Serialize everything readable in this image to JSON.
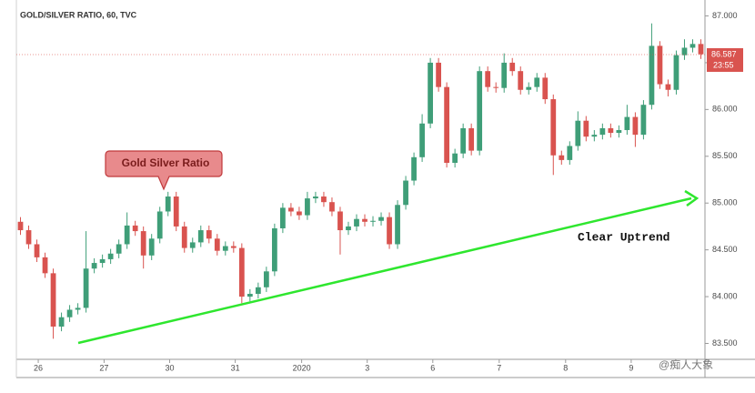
{
  "chart_data": {
    "type": "candlestick",
    "title": "GOLD/SILVER RATIO, 60, TVC",
    "annotation": "Gold Silver Ratio",
    "trend_label": "Clear Uptrend",
    "last_price": 86.587,
    "countdown": "23:55",
    "watermark": "@痴人大象",
    "up_color": "#3f9e78",
    "down_color": "#d9534f",
    "trend_color": "#2ee62e",
    "grid": false,
    "xlim": [
      -0.5,
      83.5
    ],
    "xticks": [
      {
        "value": 2.17,
        "label": "26"
      },
      {
        "value": 10.2,
        "label": "27"
      },
      {
        "value": 18.2,
        "label": "30"
      },
      {
        "value": 26.2,
        "label": "31"
      },
      {
        "value": 34.3,
        "label": "2020"
      },
      {
        "value": 42.3,
        "label": "3"
      },
      {
        "value": 50.3,
        "label": "6"
      },
      {
        "value": 58.4,
        "label": "7"
      },
      {
        "value": 66.5,
        "label": "8"
      },
      {
        "value": 74.5,
        "label": "9"
      }
    ],
    "ylim": [
      83.33,
      87.17
    ],
    "yticks": [
      {
        "value": 83.5,
        "label": "83.500"
      },
      {
        "value": 84,
        "label": "84.000"
      },
      {
        "value": 84.5,
        "label": "84.500"
      },
      {
        "value": 85,
        "label": "85.000"
      },
      {
        "value": 85.5,
        "label": "85.500"
      },
      {
        "value": 86,
        "label": "86.000"
      },
      {
        "value": 86.5,
        "label": "86.500"
      },
      {
        "value": 87,
        "label": "87.000"
      }
    ],
    "open": [
      84.8,
      84.71,
      84.56,
      84.42,
      84.25,
      83.68,
      83.78,
      83.86,
      83.88,
      84.3,
      84.36,
      84.4,
      84.46,
      84.56,
      84.76,
      84.7,
      84.44,
      84.62,
      84.91,
      85.07,
      84.75,
      84.52,
      84.58,
      84.71,
      84.62,
      84.49,
      84.54,
      84.52,
      84.0,
      84.03,
      84.1,
      84.27,
      84.73,
      84.95,
      84.91,
      84.87,
      85.05,
      85.07,
      85.01,
      84.91,
      84.71,
      84.75,
      84.83,
      84.8,
      84.81,
      84.85,
      84.56,
      84.98,
      85.24,
      85.49,
      85.85,
      86.5,
      86.24,
      85.43,
      85.53,
      85.8,
      85.56,
      86.41,
      86.24,
      86.23,
      86.5,
      86.41,
      86.21,
      86.24,
      86.34,
      86.11,
      85.51,
      85.46,
      85.61,
      85.88,
      85.71,
      85.73,
      85.8,
      85.75,
      85.78,
      85.92,
      85.73,
      86.05,
      86.68,
      86.27,
      86.21,
      86.58,
      86.66,
      86.7
    ],
    "high": [
      84.85,
      84.76,
      84.61,
      84.47,
      84.3,
      83.83,
      83.91,
      83.93,
      84.7,
      84.41,
      84.45,
      84.51,
      84.61,
      84.9,
      84.81,
      84.75,
      84.67,
      84.96,
      85.12,
      85.12,
      84.8,
      84.63,
      84.76,
      84.76,
      84.67,
      84.59,
      84.59,
      84.57,
      84.08,
      84.15,
      84.32,
      84.78,
      85.0,
      85.0,
      84.96,
      85.12,
      85.12,
      85.12,
      85.06,
      84.96,
      84.8,
      84.88,
      84.88,
      84.86,
      84.9,
      84.9,
      85.03,
      85.29,
      85.54,
      85.95,
      86.55,
      86.55,
      86.29,
      85.58,
      85.85,
      85.85,
      86.46,
      86.46,
      86.29,
      86.6,
      86.55,
      86.46,
      86.29,
      86.39,
      86.39,
      86.16,
      85.56,
      85.66,
      85.98,
      85.93,
      85.78,
      85.85,
      85.85,
      85.83,
      86.05,
      85.97,
      86.1,
      86.92,
      86.73,
      86.32,
      86.63,
      86.75,
      86.75,
      86.75
    ],
    "low": [
      84.66,
      84.51,
      84.37,
      84.2,
      83.55,
      83.63,
      83.73,
      83.81,
      83.83,
      84.25,
      84.31,
      84.35,
      84.41,
      84.51,
      84.65,
      84.3,
      84.39,
      84.57,
      84.86,
      84.7,
      84.47,
      84.47,
      84.53,
      84.57,
      84.44,
      84.44,
      84.47,
      83.93,
      83.95,
      83.98,
      84.05,
      84.22,
      84.68,
      84.86,
      84.82,
      84.82,
      85.0,
      84.96,
      84.86,
      84.45,
      84.66,
      84.7,
      84.75,
      84.75,
      84.76,
      84.51,
      84.51,
      84.93,
      85.19,
      85.44,
      85.8,
      86.19,
      85.38,
      85.38,
      85.48,
      85.51,
      85.51,
      86.19,
      86.18,
      86.18,
      86.36,
      86.16,
      86.16,
      86.19,
      86.06,
      85.3,
      85.41,
      85.41,
      85.56,
      85.66,
      85.66,
      85.68,
      85.7,
      85.7,
      85.73,
      85.6,
      85.68,
      86.0,
      86.22,
      86.14,
      86.16,
      86.53,
      86.61,
      86.54
    ],
    "close": [
      84.71,
      84.56,
      84.42,
      84.25,
      83.68,
      83.78,
      83.86,
      83.88,
      84.3,
      84.36,
      84.4,
      84.46,
      84.56,
      84.76,
      84.7,
      84.44,
      84.62,
      84.91,
      85.07,
      84.75,
      84.52,
      84.58,
      84.71,
      84.62,
      84.49,
      84.54,
      84.52,
      84.0,
      84.03,
      84.1,
      84.27,
      84.73,
      84.95,
      84.91,
      84.87,
      85.05,
      85.07,
      85.01,
      84.91,
      84.71,
      84.75,
      84.83,
      84.8,
      84.81,
      84.85,
      84.56,
      84.98,
      85.24,
      85.49,
      85.85,
      86.5,
      86.24,
      85.43,
      85.53,
      85.8,
      85.56,
      86.41,
      86.24,
      86.23,
      86.5,
      86.41,
      86.21,
      86.24,
      86.34,
      86.11,
      85.51,
      85.46,
      85.61,
      85.88,
      85.71,
      85.73,
      85.8,
      85.75,
      85.78,
      85.92,
      85.73,
      86.05,
      86.68,
      86.27,
      86.21,
      86.58,
      86.66,
      86.7,
      86.59
    ]
  }
}
